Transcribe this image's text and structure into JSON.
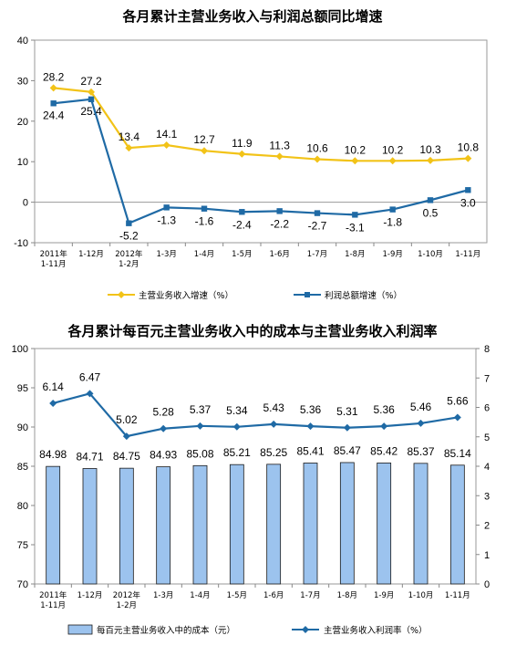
{
  "chart_data": [
    {
      "type": "line",
      "title": "各月累计主营业务收入与利润总额同比增速",
      "xlabel": "",
      "ylabel": "",
      "ylim": [
        -10,
        40
      ],
      "yticks": [
        -10,
        0,
        10,
        20,
        30,
        40
      ],
      "grid": false,
      "legend_position": "bottom",
      "categories": [
        {
          "line1": "2011年",
          "line2": "1-11月"
        },
        {
          "line1": "1-12月",
          "line2": ""
        },
        {
          "line1": "2012年",
          "line2": "1-2月"
        },
        {
          "line1": "1-3月",
          "line2": ""
        },
        {
          "line1": "1-4月",
          "line2": ""
        },
        {
          "line1": "1-5月",
          "line2": ""
        },
        {
          "line1": "1-6月",
          "line2": ""
        },
        {
          "line1": "1-7月",
          "line2": ""
        },
        {
          "line1": "1-8月",
          "line2": ""
        },
        {
          "line1": "1-9月",
          "line2": ""
        },
        {
          "line1": "1-10月",
          "line2": ""
        },
        {
          "line1": "1-11月",
          "line2": ""
        }
      ],
      "series": [
        {
          "name": "主营业务收入增速（%）",
          "color": "#f2c318",
          "marker": "diamond",
          "values": [
            28.2,
            27.2,
            13.4,
            14.1,
            12.7,
            11.9,
            11.3,
            10.6,
            10.2,
            10.2,
            10.3,
            10.8
          ],
          "labels": [
            "28.2",
            "27.2",
            "13.4",
            "14.1",
            "12.7",
            "11.9",
            "11.3",
            "10.6",
            "10.2",
            "10.2",
            "10.3",
            "10.8"
          ]
        },
        {
          "name": "利润总额增速（%）",
          "color": "#1f6aa5",
          "marker": "square",
          "values": [
            24.4,
            25.4,
            -5.2,
            -1.3,
            -1.6,
            -2.4,
            -2.2,
            -2.7,
            -3.1,
            -1.8,
            0.5,
            3.0
          ],
          "labels": [
            "24.4",
            "25.4",
            "-5.2",
            "-1.3",
            "-1.6",
            "-2.4",
            "-2.2",
            "-2.7",
            "-3.1",
            "-1.8",
            "0.5",
            "3.0"
          ]
        }
      ]
    },
    {
      "type": "bar",
      "title": "各月累计每百元主营业务收入中的成本与主营业务收入利润率",
      "xlabel": "",
      "ylabel": "",
      "ylim": [
        70,
        100
      ],
      "yticks": [
        70,
        75,
        80,
        85,
        90,
        95,
        100
      ],
      "y2lim": [
        0,
        8
      ],
      "y2ticks": [
        0,
        1,
        2,
        3,
        4,
        5,
        6,
        7,
        8
      ],
      "grid": false,
      "legend_position": "bottom",
      "categories": [
        {
          "line1": "2011年",
          "line2": "1-11月"
        },
        {
          "line1": "1-12月",
          "line2": ""
        },
        {
          "line1": "2012年",
          "line2": "1-2月"
        },
        {
          "line1": "1-3月",
          "line2": ""
        },
        {
          "line1": "1-4月",
          "line2": ""
        },
        {
          "line1": "1-5月",
          "line2": ""
        },
        {
          "line1": "1-6月",
          "line2": ""
        },
        {
          "line1": "1-7月",
          "line2": ""
        },
        {
          "line1": "1-8月",
          "line2": ""
        },
        {
          "line1": "1-9月",
          "line2": ""
        },
        {
          "line1": "1-10月",
          "line2": ""
        },
        {
          "line1": "1-11月",
          "line2": ""
        }
      ],
      "bar_series": {
        "name": "每百元主营业务收入中的成本（元）",
        "color": "#9cc3ee",
        "axis": "left",
        "values": [
          84.98,
          84.71,
          84.75,
          84.93,
          85.08,
          85.21,
          85.25,
          85.41,
          85.47,
          85.42,
          85.37,
          85.14
        ],
        "labels": [
          "84.98",
          "84.71",
          "84.75",
          "84.93",
          "85.08",
          "85.21",
          "85.25",
          "85.41",
          "85.47",
          "85.42",
          "85.37",
          "85.14"
        ]
      },
      "line_series": {
        "name": "主营业务收入利润率（%）",
        "color": "#1f6aa5",
        "marker": "diamond",
        "axis": "right",
        "values": [
          6.14,
          6.47,
          5.02,
          5.28,
          5.37,
          5.34,
          5.43,
          5.36,
          5.31,
          5.36,
          5.46,
          5.66
        ],
        "labels": [
          "6.14",
          "6.47",
          "5.02",
          "5.28",
          "5.37",
          "5.34",
          "5.43",
          "5.36",
          "5.31",
          "5.36",
          "5.46",
          "5.66"
        ]
      }
    }
  ]
}
